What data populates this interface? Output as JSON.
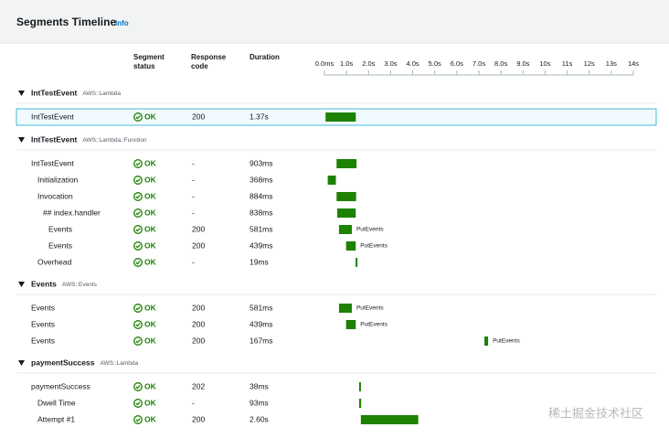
{
  "header": {
    "title": "Segments Timeline",
    "info": "Info"
  },
  "columns": {
    "status": "Segment status",
    "code": "Response code",
    "duration": "Duration"
  },
  "timeline": {
    "xlim": [
      0,
      14
    ],
    "ticks": [
      {
        "value": 0,
        "label": "0.0ms"
      },
      {
        "value": 1,
        "label": "1.0s"
      },
      {
        "value": 2,
        "label": "2.0s"
      },
      {
        "value": 3,
        "label": "3.0s"
      },
      {
        "value": 4,
        "label": "4.0s"
      },
      {
        "value": 5,
        "label": "5.0s"
      },
      {
        "value": 6,
        "label": "6.0s"
      },
      {
        "value": 7,
        "label": "7.0s"
      },
      {
        "value": 8,
        "label": "8.0s"
      },
      {
        "value": 9,
        "label": "9.0s"
      },
      {
        "value": 10,
        "label": "10s"
      },
      {
        "value": 11,
        "label": "11s"
      },
      {
        "value": 12,
        "label": "12s"
      },
      {
        "value": 13,
        "label": "13s"
      },
      {
        "value": 14,
        "label": "14s"
      }
    ],
    "color": "#1d8102"
  },
  "groups": [
    {
      "name": "IntTestEvent",
      "type": "AWS::Lambda",
      "rows": [
        {
          "name": "IntTestEvent",
          "status": "OK",
          "code": "200",
          "duration": "1.37s",
          "timeline": [
            0.05,
            1.37
          ],
          "selected": true
        }
      ]
    },
    {
      "name": "IntTestEvent",
      "type": "AWS::Lambda::Function",
      "rows": [
        {
          "name": "IntTestEvent",
          "status": "OK",
          "code": "-",
          "duration": "903ms",
          "timeline": [
            0.55,
            0.903
          ]
        },
        {
          "name": "Initialization",
          "status": "OK",
          "code": "-",
          "duration": "368ms",
          "timeline": [
            0.15,
            0.368
          ]
        },
        {
          "name": "Invocation",
          "status": "OK",
          "code": "-",
          "duration": "884ms",
          "timeline": [
            0.55,
            0.884
          ]
        },
        {
          "name": "## index.handler",
          "status": "OK",
          "code": "-",
          "duration": "838ms",
          "timeline": [
            0.58,
            0.838
          ]
        },
        {
          "name": "Events",
          "status": "OK",
          "code": "200",
          "duration": "581ms",
          "timeline": [
            0.66,
            0.581
          ],
          "annotation": "PutEvents"
        },
        {
          "name": "Events",
          "status": "OK",
          "code": "200",
          "duration": "439ms",
          "timeline": [
            0.98,
            0.439
          ],
          "annotation": "PutEvents"
        },
        {
          "name": "Overhead",
          "status": "OK",
          "code": "-",
          "duration": "19ms",
          "timeline": [
            1.41,
            0.019
          ]
        }
      ]
    },
    {
      "name": "Events",
      "type": "AWS::Events",
      "rows": [
        {
          "name": "Events",
          "status": "OK",
          "code": "200",
          "duration": "581ms",
          "timeline": [
            0.66,
            0.581
          ],
          "annotation": "PutEvents"
        },
        {
          "name": "Events",
          "status": "OK",
          "code": "200",
          "duration": "439ms",
          "timeline": [
            0.98,
            0.439
          ],
          "annotation": "PutEvents"
        },
        {
          "name": "Events",
          "status": "OK",
          "code": "200",
          "duration": "167ms",
          "timeline": [
            7.25,
            0.167
          ],
          "annotation": "PutEvents"
        }
      ]
    },
    {
      "name": "paymentSuccess",
      "type": "AWS::Lambda",
      "rows": [
        {
          "name": "paymentSuccess",
          "status": "OK",
          "code": "202",
          "duration": "38ms",
          "timeline": [
            1.57,
            0.038
          ]
        },
        {
          "name": "Dwell Time",
          "status": "OK",
          "code": "-",
          "duration": "93ms",
          "timeline": [
            1.57,
            0.093
          ]
        },
        {
          "name": "Attempt #1",
          "status": "OK",
          "code": "200",
          "duration": "2.60s",
          "timeline": [
            1.65,
            2.6
          ]
        }
      ]
    }
  ],
  "watermark": "稀土掘金技术社区"
}
